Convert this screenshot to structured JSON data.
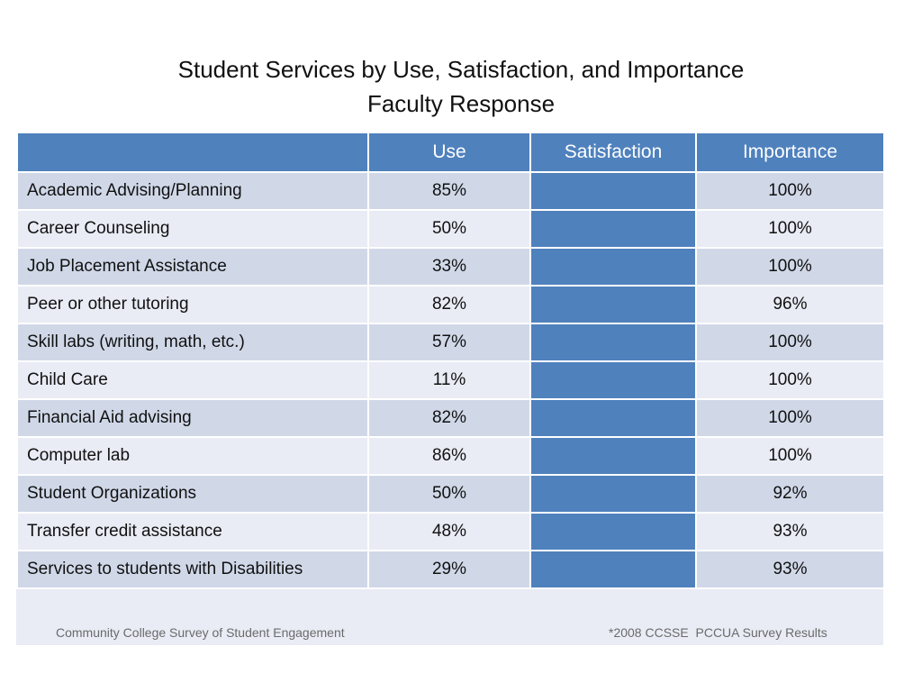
{
  "title": {
    "line1": "Student Services by Use, Satisfaction, and Importance",
    "line2": "Faculty Response"
  },
  "table": {
    "columns": [
      "",
      "Use",
      "Satisfaction",
      "Importance"
    ],
    "rows": [
      {
        "service": "Academic Advising/Planning",
        "use": "85%",
        "satisfaction": "",
        "importance": "100%"
      },
      {
        "service": "Career Counseling",
        "use": "50%",
        "satisfaction": "",
        "importance": "100%"
      },
      {
        "service": "Job Placement Assistance",
        "use": "33%",
        "satisfaction": "",
        "importance": "100%"
      },
      {
        "service": "Peer or other tutoring",
        "use": "82%",
        "satisfaction": "",
        "importance": "96%"
      },
      {
        "service": "Skill labs (writing, math, etc.)",
        "use": "57%",
        "satisfaction": "",
        "importance": "100%"
      },
      {
        "service": "Child Care",
        "use": "11%",
        "satisfaction": "",
        "importance": "100%"
      },
      {
        "service": "Financial Aid advising",
        "use": "82%",
        "satisfaction": "",
        "importance": "100%"
      },
      {
        "service": "Computer lab",
        "use": "86%",
        "satisfaction": "",
        "importance": "100%"
      },
      {
        "service": "Student Organizations",
        "use": "50%",
        "satisfaction": "",
        "importance": "92%"
      },
      {
        "service": "Transfer credit assistance",
        "use": "48%",
        "satisfaction": "",
        "importance": "93%"
      },
      {
        "service": "Services to students with Disabilities",
        "use": "29%",
        "satisfaction": "",
        "importance": "93%"
      }
    ]
  },
  "footer": {
    "left": "Community College Survey of Student Engagement",
    "right": "*2008 CCSSE  PCCUA Survey Results"
  },
  "colors": {
    "header_blue": "#4f81bd",
    "row_dark": "#d0d8e8",
    "row_light": "#e9ebf5"
  }
}
